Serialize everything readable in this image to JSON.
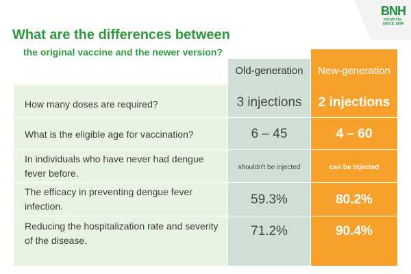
{
  "logo": {
    "mark": "BNH",
    "line1": "HOSPITAL",
    "line2": "SINCE 1898"
  },
  "title": {
    "line1": "What are the differences between",
    "line2": "the original vaccine and the newer version?"
  },
  "headers": {
    "old": "Old-generation",
    "new": "New-generation"
  },
  "rows": [
    {
      "question": "How many doses are required?",
      "old": "3 injections",
      "new": "2 injections"
    },
    {
      "question": "What is the eligible age for vaccination?",
      "old": "6 – 45",
      "new": "4 – 60"
    },
    {
      "question": "In individuals who have never had dengue fever before.",
      "old": "shouldn't be injected",
      "new": "can be injected"
    },
    {
      "question": "The efficacy in preventing dengue fever infection.",
      "old": "59.3%",
      "new": "80.2%"
    },
    {
      "question": "Reducing the hospitalization rate and severity of the disease.",
      "old": "71.2%",
      "new": "90.4%"
    }
  ],
  "colors": {
    "title_green": "#2f9a3d",
    "table_bg": "#e8f4e1",
    "old_col": "#cfdfd6",
    "new_col": "#f6a12c"
  }
}
